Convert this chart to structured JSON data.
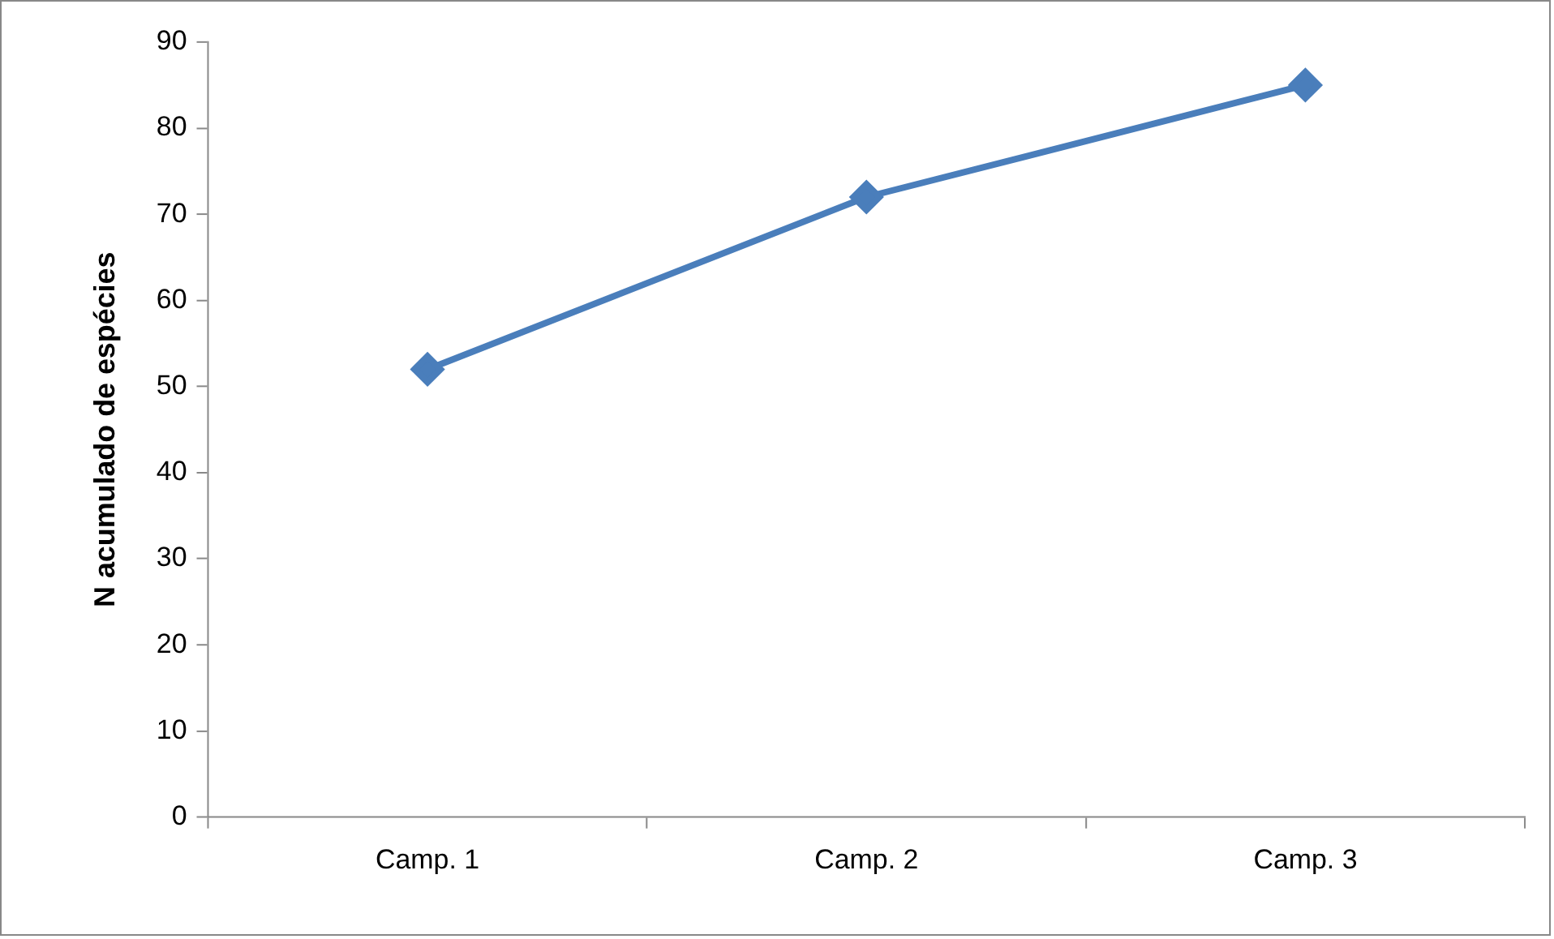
{
  "chart_data": {
    "type": "line",
    "ylabel": "N acumulado de espécies",
    "categories": [
      "Camp. 1",
      "Camp. 2",
      "Camp. 3"
    ],
    "series": [
      {
        "color": "#4a7ebb",
        "values": [
          52,
          72,
          85
        ]
      }
    ],
    "ylim": [
      0,
      90
    ],
    "yticks": [
      0,
      10,
      20,
      30,
      40,
      50,
      60,
      70,
      80,
      90
    ],
    "grid": false,
    "legend": false,
    "marker": "diamond",
    "line_style": "solid"
  }
}
